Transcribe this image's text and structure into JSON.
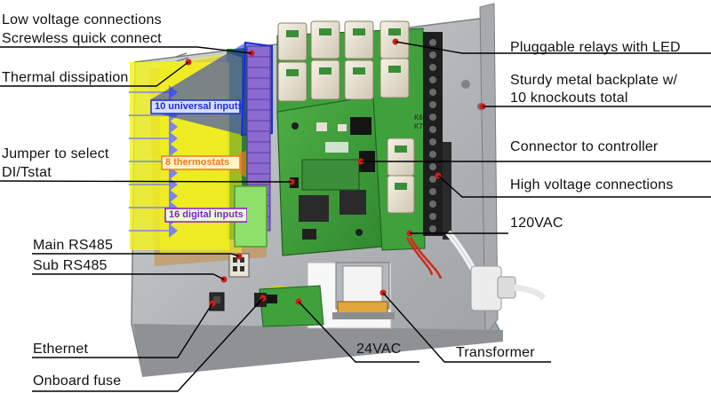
{
  "callouts": {
    "low_voltage": "Low voltage connections",
    "screwless": "Screwless quick connect",
    "thermal": "Thermal dissipation",
    "jumper_line1": "Jumper to select",
    "jumper_line2": "DI/Tstat",
    "main_rs485": "Main RS485",
    "sub_rs485": "Sub RS485",
    "ethernet": "Ethernet",
    "fuse": "Onboard fuse",
    "vac24": "24VAC",
    "transformer": "Transformer",
    "relays": "Pluggable relays with LED",
    "backplate_line1": "Sturdy metal backplate w/",
    "backplate_line2": "10 knockouts total",
    "connector": "Connector to controller",
    "high_voltage": "High voltage connections",
    "vac120": "120VAC"
  },
  "board_labels": {
    "universal_inputs": "10 universal inputs",
    "thermostats": "8 thermostats",
    "digital_inputs": "16 digital inputs"
  },
  "relay_marks": [
    "K6",
    "K7"
  ],
  "colors": {
    "highlight_yellow": "#f2f21c",
    "universal_blue": "#1a2fd8",
    "thermostat_orange": "#f07a1a",
    "digital_purple": "#8a1cc8",
    "digital_green": "#8ee06a",
    "pcb_green": "#3f9e3a",
    "enclosure_grey": "#b8bcbf",
    "terminal_black": "#1e1e1e",
    "leader_line": "#000000"
  }
}
